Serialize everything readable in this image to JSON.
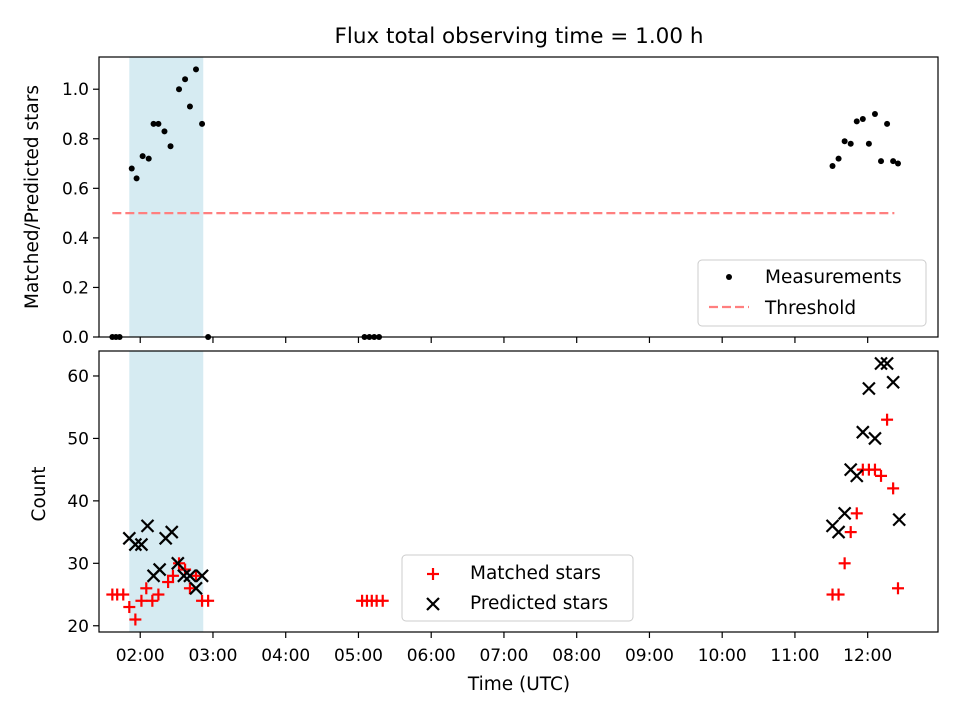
{
  "chart_data": [
    {
      "type": "scatter",
      "title": "Flux total observing time = 1.00 h",
      "xlabel": "",
      "ylabel": "Matched/Predicted stars",
      "xlim": [
        "01:26",
        "12:58"
      ],
      "ylim": [
        0,
        1.13
      ],
      "yticks": [
        "0.0",
        "0.2",
        "0.4",
        "0.6",
        "0.8",
        "1.0"
      ],
      "shaded_region": [
        "01:51",
        "02:52"
      ],
      "threshold": {
        "value": 0.5,
        "x_start": "01:37",
        "x_end": "12:22",
        "color": "#ff7f7f"
      },
      "legend_position": "lower right",
      "legend": [
        "Measurements",
        "Threshold"
      ],
      "series": [
        {
          "name": "Measurements",
          "color": "#000000",
          "marker": "dot",
          "points": [
            [
              "01:37",
              0.0
            ],
            [
              "01:40",
              0.0
            ],
            [
              "01:43",
              0.0
            ],
            [
              "01:53",
              0.68
            ],
            [
              "01:57",
              0.64
            ],
            [
              "02:02",
              0.73
            ],
            [
              "02:07",
              0.72
            ],
            [
              "02:11",
              0.86
            ],
            [
              "02:15",
              0.86
            ],
            [
              "02:20",
              0.83
            ],
            [
              "02:25",
              0.77
            ],
            [
              "02:32",
              1.0
            ],
            [
              "02:37",
              1.04
            ],
            [
              "02:41",
              0.93
            ],
            [
              "02:46",
              1.08
            ],
            [
              "02:51",
              0.86
            ],
            [
              "02:56",
              0.0
            ],
            [
              "05:05",
              0.0
            ],
            [
              "05:09",
              0.0
            ],
            [
              "05:13",
              0.0
            ],
            [
              "05:17",
              0.0
            ],
            [
              "11:31",
              0.69
            ],
            [
              "11:36",
              0.72
            ],
            [
              "11:41",
              0.79
            ],
            [
              "11:46",
              0.78
            ],
            [
              "11:51",
              0.87
            ],
            [
              "11:56",
              0.88
            ],
            [
              "12:01",
              0.78
            ],
            [
              "12:06",
              0.9
            ],
            [
              "12:11",
              0.71
            ],
            [
              "12:16",
              0.86
            ],
            [
              "12:21",
              0.71
            ],
            [
              "12:25",
              0.7
            ]
          ]
        }
      ]
    },
    {
      "type": "scatter",
      "title": "",
      "xlabel": "Time (UTC)",
      "ylabel": "Count",
      "xlim": [
        "01:26",
        "12:58"
      ],
      "ylim": [
        19,
        64
      ],
      "yticks": [
        "20",
        "30",
        "40",
        "50",
        "60"
      ],
      "xticks": [
        "02:00",
        "03:00",
        "04:00",
        "05:00",
        "06:00",
        "07:00",
        "08:00",
        "09:00",
        "10:00",
        "11:00",
        "12:00"
      ],
      "shaded_region": [
        "01:51",
        "02:52"
      ],
      "legend_position": "lower center",
      "series": [
        {
          "name": "Matched stars",
          "color": "#ff0000",
          "marker": "plus",
          "points": [
            [
              "01:37",
              25
            ],
            [
              "01:41",
              25
            ],
            [
              "01:46",
              25
            ],
            [
              "01:51",
              23
            ],
            [
              "01:56",
              21
            ],
            [
              "02:01",
              24
            ],
            [
              "02:05",
              26
            ],
            [
              "02:10",
              24
            ],
            [
              "02:15",
              25
            ],
            [
              "02:23",
              27
            ],
            [
              "02:27",
              28
            ],
            [
              "02:32",
              30
            ],
            [
              "02:37",
              29
            ],
            [
              "02:41",
              26
            ],
            [
              "02:46",
              28
            ],
            [
              "02:51",
              24
            ],
            [
              "02:56",
              24
            ],
            [
              "05:03",
              24
            ],
            [
              "05:07",
              24
            ],
            [
              "05:11",
              24
            ],
            [
              "05:15",
              24
            ],
            [
              "05:20",
              24
            ],
            [
              "11:31",
              25
            ],
            [
              "11:36",
              25
            ],
            [
              "11:41",
              30
            ],
            [
              "11:46",
              35
            ],
            [
              "11:51",
              38
            ],
            [
              "11:56",
              45
            ],
            [
              "12:01",
              45
            ],
            [
              "12:06",
              45
            ],
            [
              "12:11",
              44
            ],
            [
              "12:16",
              53
            ],
            [
              "12:21",
              42
            ],
            [
              "12:25",
              26
            ]
          ]
        },
        {
          "name": "Predicted stars",
          "color": "#000000",
          "marker": "x",
          "points": [
            [
              "01:51",
              34
            ],
            [
              "01:56",
              33
            ],
            [
              "02:01",
              33
            ],
            [
              "02:06",
              36
            ],
            [
              "02:11",
              28
            ],
            [
              "02:16",
              29
            ],
            [
              "02:21",
              34
            ],
            [
              "02:26",
              35
            ],
            [
              "02:31",
              30
            ],
            [
              "02:36",
              28
            ],
            [
              "02:41",
              28
            ],
            [
              "02:46",
              26
            ],
            [
              "02:51",
              28
            ],
            [
              "11:31",
              36
            ],
            [
              "11:36",
              35
            ],
            [
              "11:41",
              38
            ],
            [
              "11:46",
              45
            ],
            [
              "11:51",
              44
            ],
            [
              "11:56",
              51
            ],
            [
              "12:01",
              58
            ],
            [
              "12:06",
              50
            ],
            [
              "12:11",
              62
            ],
            [
              "12:16",
              62
            ],
            [
              "12:21",
              59
            ],
            [
              "12:26",
              37
            ]
          ]
        }
      ]
    }
  ]
}
